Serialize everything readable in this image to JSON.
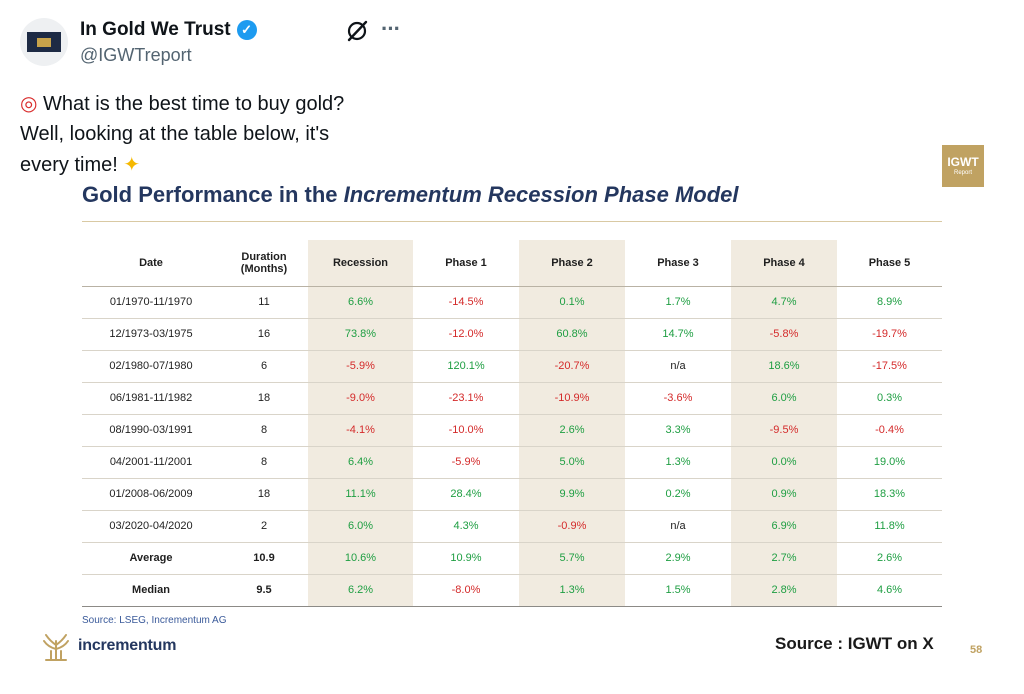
{
  "author": {
    "display_name": "In Gold We Trust",
    "handle": "@IGWTreport"
  },
  "icons": {
    "verified": "verified-badge-icon",
    "grok": "grok-icon",
    "more": "more-options-icon",
    "target": "target-emoji",
    "sparkles": "sparkles-emoji"
  },
  "tweet": {
    "line1": "What is the best time to buy gold?",
    "line2": "Well, looking at the table below, it's",
    "line3": "every time!"
  },
  "badge": {
    "line1": "IGWT",
    "line2": "Report"
  },
  "slide": {
    "title_prefix": "Gold Performance in the ",
    "title_italic": "Incrementum Recession Phase Model",
    "source_note": "Source: LSEG, Incrementum AG",
    "brand_name": "incrementum",
    "page_number": "58"
  },
  "overlay_source": "Source : IGWT on X",
  "table": {
    "headers": [
      "Date",
      "Duration (Months)",
      "Recession",
      "Phase 1",
      "Phase 2",
      "Phase 3",
      "Phase 4",
      "Phase 5"
    ],
    "rows": [
      {
        "date": "01/1970-11/1970",
        "duration": "11",
        "values": [
          "6.6%",
          "-14.5%",
          "0.1%",
          "1.7%",
          "4.7%",
          "8.9%"
        ]
      },
      {
        "date": "12/1973-03/1975",
        "duration": "16",
        "values": [
          "73.8%",
          "-12.0%",
          "60.8%",
          "14.7%",
          "-5.8%",
          "-19.7%"
        ]
      },
      {
        "date": "02/1980-07/1980",
        "duration": "6",
        "values": [
          "-5.9%",
          "120.1%",
          "-20.7%",
          "n/a",
          "18.6%",
          "-17.5%"
        ]
      },
      {
        "date": "06/1981-11/1982",
        "duration": "18",
        "values": [
          "-9.0%",
          "-23.1%",
          "-10.9%",
          "-3.6%",
          "6.0%",
          "0.3%"
        ]
      },
      {
        "date": "08/1990-03/1991",
        "duration": "8",
        "values": [
          "-4.1%",
          "-10.0%",
          "2.6%",
          "3.3%",
          "-9.5%",
          "-0.4%"
        ]
      },
      {
        "date": "04/2001-11/2001",
        "duration": "8",
        "values": [
          "6.4%",
          "-5.9%",
          "5.0%",
          "1.3%",
          "0.0%",
          "19.0%"
        ]
      },
      {
        "date": "01/2008-06/2009",
        "duration": "18",
        "values": [
          "11.1%",
          "28.4%",
          "9.9%",
          "0.2%",
          "0.9%",
          "18.3%"
        ]
      },
      {
        "date": "03/2020-04/2020",
        "duration": "2",
        "values": [
          "6.0%",
          "4.3%",
          "-0.9%",
          "n/a",
          "6.9%",
          "11.8%"
        ]
      },
      {
        "date": "Average",
        "duration": "10.9",
        "values": [
          "10.6%",
          "10.9%",
          "5.7%",
          "2.9%",
          "2.7%",
          "2.6%"
        ],
        "summary": true
      },
      {
        "date": "Median",
        "duration": "9.5",
        "values": [
          "6.2%",
          "-8.0%",
          "1.3%",
          "1.5%",
          "2.8%",
          "4.6%"
        ],
        "summary": true
      }
    ]
  },
  "colors": {
    "positive": "#1e9e42",
    "negative": "#d42a2a",
    "neutral": "#222222",
    "shade": "#f1ebe0",
    "title": "#24375f",
    "gold": "#c0a262"
  }
}
